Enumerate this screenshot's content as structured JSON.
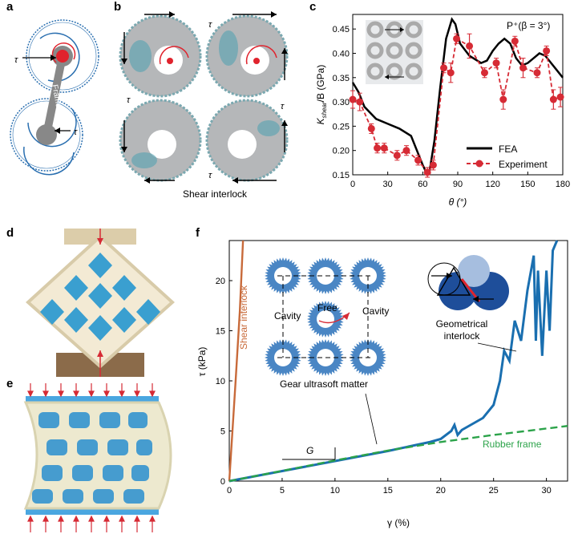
{
  "panels": {
    "a": "a",
    "b": "b",
    "c": "c",
    "d": "d",
    "e": "e",
    "f": "f"
  },
  "panel_a": {
    "tau": "τ",
    "frame_label": "Frame"
  },
  "panel_b": {
    "tau": "τ",
    "caption": "Shear interlock",
    "unit_tau": "τ"
  },
  "panel_c": {
    "ylabel_main": "K",
    "ylabel_sub": "shear",
    "ylabel_rest": "/B (GPa)",
    "xlabel": "θ (°)",
    "annotation": "P⁺(β = 3°)",
    "legend": [
      "FEA",
      "Experiment"
    ]
  },
  "panel_f": {
    "ylabel": "τ (kPa)",
    "xlabel": "γ (%)",
    "labels": {
      "shear": "Shear interlock",
      "cavity_left": "Cavity",
      "cavity_right": "Cavity",
      "free": "Free",
      "gear": "Gear ultrasoft matter",
      "geo": "Geometrical\ninterlock",
      "rubber": "Rubber frame",
      "G": "G"
    }
  },
  "colors": {
    "fea": "#000000",
    "experiment": "#d62b35",
    "shear_interlock": "#c86a3a",
    "gear_curve": "#1a6fb0",
    "rubber": "#2ca34a",
    "gear_fill": "#4a86c4",
    "frame_blue": "#2a6fb0"
  },
  "chart_data": [
    {
      "type": "line",
      "title": "",
      "xlabel": "θ (°)",
      "ylabel": "Kshear/B (GPa)",
      "xlim": [
        0,
        180
      ],
      "ylim": [
        0.15,
        0.48
      ],
      "xticks": [
        0,
        30,
        60,
        90,
        120,
        150,
        180
      ],
      "yticks": [
        0.15,
        0.2,
        0.25,
        0.3,
        0.35,
        0.4,
        0.45
      ],
      "series": [
        {
          "name": "FEA",
          "x": [
            0,
            5,
            10,
            20,
            30,
            40,
            50,
            55,
            60,
            63,
            66,
            70,
            75,
            80,
            85,
            88,
            92,
            100,
            110,
            115,
            120,
            125,
            130,
            135,
            140,
            145,
            150,
            155,
            160,
            165,
            170,
            175,
            180
          ],
          "y": [
            0.34,
            0.32,
            0.29,
            0.265,
            0.255,
            0.245,
            0.23,
            0.2,
            0.17,
            0.155,
            0.16,
            0.22,
            0.33,
            0.43,
            0.47,
            0.46,
            0.42,
            0.395,
            0.38,
            0.385,
            0.405,
            0.42,
            0.43,
            0.42,
            0.39,
            0.375,
            0.38,
            0.39,
            0.4,
            0.395,
            0.38,
            0.365,
            0.35
          ]
        },
        {
          "name": "Experiment",
          "x": [
            0,
            6,
            16,
            21,
            27,
            38,
            46,
            56,
            64,
            69,
            78,
            84,
            89,
            100,
            113,
            123,
            129,
            139,
            146,
            158,
            166,
            172,
            178
          ],
          "y": [
            0.305,
            0.3,
            0.245,
            0.205,
            0.205,
            0.19,
            0.2,
            0.18,
            0.155,
            0.17,
            0.37,
            0.36,
            0.43,
            0.415,
            0.36,
            0.38,
            0.305,
            0.425,
            0.37,
            0.36,
            0.405,
            0.305,
            0.31
          ],
          "err": [
            0.018,
            0.018,
            0.01,
            0.01,
            0.01,
            0.01,
            0.01,
            0.01,
            0.01,
            0.01,
            0.01,
            0.02,
            0.01,
            0.025,
            0.01,
            0.01,
            0.02,
            0.01,
            0.02,
            0.01,
            0.01,
            0.02,
            0.02
          ]
        }
      ],
      "legend_position": "bottom-right"
    },
    {
      "type": "line",
      "title": "",
      "xlabel": "γ (%)",
      "ylabel": "τ (kPa)",
      "xlim": [
        0,
        32
      ],
      "ylim": [
        0,
        24
      ],
      "xticks": [
        0,
        5,
        10,
        15,
        20,
        25,
        30
      ],
      "yticks": [
        0,
        5,
        10,
        15,
        20
      ],
      "series": [
        {
          "name": "Shear interlock",
          "x": [
            0,
            0.3,
            0.6,
            1.0,
            1.3
          ],
          "y": [
            0,
            5,
            10,
            17,
            24
          ]
        },
        {
          "name": "Gear ultrasoft matter",
          "x": [
            0,
            5,
            10,
            15,
            19,
            20,
            21,
            21.3,
            21.6,
            22,
            23,
            24,
            25,
            25.6,
            26,
            26.5,
            27,
            27.6,
            28.2,
            28.8,
            29,
            29.2,
            29.6,
            30,
            30.3,
            30.6,
            31
          ],
          "y": [
            0,
            1,
            2,
            3,
            3.9,
            4.2,
            5,
            5.6,
            4.6,
            5.1,
            5.7,
            6.3,
            7.6,
            10,
            13,
            12,
            16,
            14,
            19,
            22.5,
            14,
            21,
            12.5,
            21,
            15,
            23,
            24
          ]
        },
        {
          "name": "Rubber frame",
          "x": [
            0,
            5,
            10,
            15,
            20,
            25,
            32
          ],
          "y": [
            0,
            1.02,
            2.06,
            3.05,
            3.9,
            4.6,
            5.5
          ]
        }
      ]
    }
  ]
}
